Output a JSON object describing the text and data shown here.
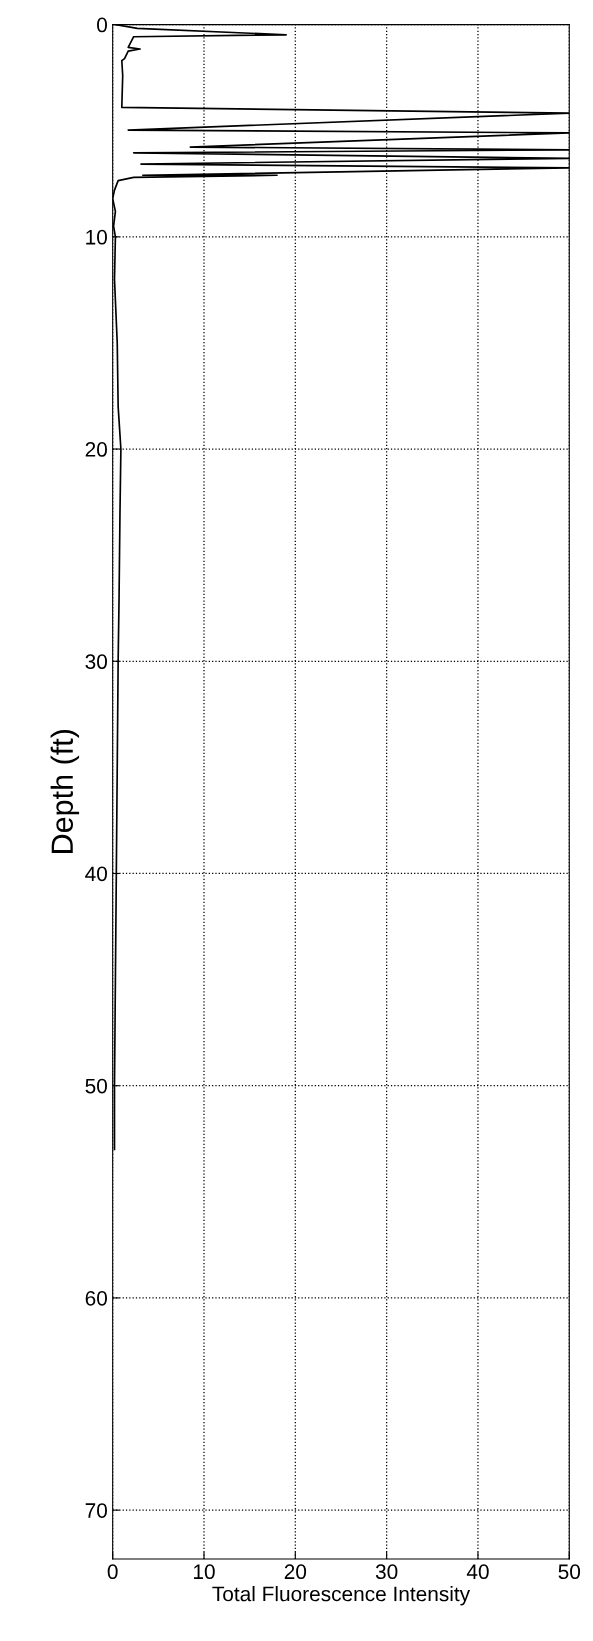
{
  "chart_data": {
    "type": "line",
    "xlabel": "Total Fluorescence Intensity",
    "ylabel": "Depth (ft)",
    "series": [
      {
        "color": "#000000",
        "x": [
          0.3,
          2.7,
          19,
          2.3,
          1.7,
          3,
          1.7,
          1.3,
          1.0,
          1.1,
          1.0,
          50,
          1.7,
          50,
          8.5,
          50,
          2.3,
          50,
          3.1,
          50,
          3.3,
          18,
          2.3,
          0.6,
          0.2,
          0,
          0.3,
          0.1,
          0.3,
          0.2,
          0.5,
          0.6,
          0.9,
          0.8,
          0.7,
          0.6,
          0.5,
          0.4,
          0.3,
          0.2,
          0.2
        ],
        "values": [
          0,
          0.18,
          0.48,
          0.57,
          1.07,
          1.15,
          1.25,
          1.6,
          1.7,
          2.4,
          3.9,
          4.17,
          4.97,
          5.1,
          5.77,
          5.9,
          6.04,
          6.3,
          6.57,
          6.75,
          7.1,
          7.1,
          7.2,
          7.35,
          7.8,
          8.2,
          8.8,
          9.5,
          10,
          12,
          15,
          18,
          20,
          23,
          27,
          30,
          35,
          40,
          45,
          50,
          53
        ]
      }
    ],
    "xlim": [
      0,
      50
    ],
    "xticks": [
      0,
      10,
      20,
      30,
      40,
      50
    ],
    "ylim": [
      72.3,
      0
    ],
    "yticks": [
      0,
      10,
      20,
      30,
      40,
      50,
      60,
      70
    ],
    "grid": true,
    "line_style": "solid",
    "marker": "none"
  }
}
